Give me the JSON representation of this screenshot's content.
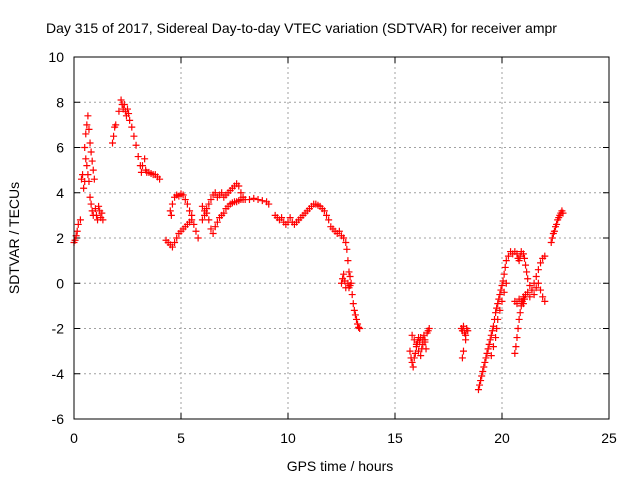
{
  "chart_data": {
    "type": "scatter",
    "title": "Day 315 of 2017, Sidereal Day-to-day VTEC variation (SDTVAR) for receiver ampr",
    "xlabel": "GPS time / hours",
    "ylabel": "SDTVAR / TECUs",
    "xlim": [
      0,
      25
    ],
    "ylim": [
      -6,
      10
    ],
    "xticks": [
      0,
      5,
      10,
      15,
      20,
      25
    ],
    "yticks": [
      -6,
      -4,
      -2,
      0,
      2,
      4,
      6,
      8,
      10
    ],
    "grid": true,
    "marker": "plus",
    "color": "#ff0000",
    "series": [
      {
        "name": "SDTVAR",
        "points": [
          [
            0.0,
            1.8
          ],
          [
            0.05,
            1.9
          ],
          [
            0.1,
            2.1
          ],
          [
            0.15,
            2.3
          ],
          [
            0.2,
            2.6
          ],
          [
            0.3,
            2.8
          ],
          [
            0.35,
            4.6
          ],
          [
            0.4,
            4.8
          ],
          [
            0.45,
            4.2
          ],
          [
            0.5,
            4.5
          ],
          [
            0.5,
            6.0
          ],
          [
            0.55,
            6.6
          ],
          [
            0.6,
            7.0
          ],
          [
            0.65,
            7.4
          ],
          [
            0.7,
            6.8
          ],
          [
            0.75,
            6.2
          ],
          [
            0.8,
            5.8
          ],
          [
            0.85,
            5.4
          ],
          [
            0.9,
            5.0
          ],
          [
            0.95,
            4.6
          ],
          [
            0.55,
            5.5
          ],
          [
            0.6,
            5.2
          ],
          [
            0.65,
            4.8
          ],
          [
            0.7,
            4.5
          ],
          [
            0.75,
            3.8
          ],
          [
            0.8,
            3.5
          ],
          [
            0.85,
            3.2
          ],
          [
            0.9,
            3.0
          ],
          [
            1.0,
            3.3
          ],
          [
            1.05,
            3.0
          ],
          [
            1.1,
            2.8
          ],
          [
            1.15,
            3.4
          ],
          [
            1.2,
            3.2
          ],
          [
            1.25,
            2.9
          ],
          [
            1.3,
            3.1
          ],
          [
            1.35,
            2.8
          ],
          [
            1.8,
            6.2
          ],
          [
            1.85,
            6.5
          ],
          [
            1.9,
            6.9
          ],
          [
            1.95,
            7.0
          ],
          [
            2.1,
            7.6
          ],
          [
            2.2,
            8.1
          ],
          [
            2.25,
            7.9
          ],
          [
            2.3,
            7.7
          ],
          [
            2.35,
            7.9
          ],
          [
            2.4,
            7.6
          ],
          [
            2.45,
            7.4
          ],
          [
            2.5,
            7.7
          ],
          [
            2.55,
            7.5
          ],
          [
            2.6,
            7.2
          ],
          [
            2.7,
            6.9
          ],
          [
            2.8,
            6.5
          ],
          [
            2.9,
            6.1
          ],
          [
            3.0,
            5.6
          ],
          [
            3.1,
            5.2
          ],
          [
            3.15,
            4.9
          ],
          [
            3.2,
            5.2
          ],
          [
            3.3,
            5.5
          ],
          [
            3.35,
            5.0
          ],
          [
            3.4,
            4.9
          ],
          [
            3.5,
            4.9
          ],
          [
            3.6,
            4.85
          ],
          [
            3.7,
            4.8
          ],
          [
            3.8,
            4.8
          ],
          [
            3.9,
            4.7
          ],
          [
            4.0,
            4.6
          ],
          [
            4.3,
            1.9
          ],
          [
            4.4,
            1.8
          ],
          [
            4.5,
            1.7
          ],
          [
            4.6,
            1.6
          ],
          [
            4.7,
            1.8
          ],
          [
            4.8,
            2.0
          ],
          [
            4.9,
            2.2
          ],
          [
            5.0,
            2.3
          ],
          [
            5.1,
            2.4
          ],
          [
            5.2,
            2.5
          ],
          [
            5.3,
            2.6
          ],
          [
            5.4,
            2.7
          ],
          [
            5.5,
            2.8
          ],
          [
            5.6,
            2.6
          ],
          [
            5.7,
            2.3
          ],
          [
            5.8,
            2.0
          ],
          [
            4.5,
            3.2
          ],
          [
            4.55,
            3.0
          ],
          [
            4.6,
            3.5
          ],
          [
            4.7,
            3.8
          ],
          [
            4.8,
            3.9
          ],
          [
            4.9,
            3.85
          ],
          [
            5.0,
            3.95
          ],
          [
            5.1,
            3.9
          ],
          [
            5.2,
            3.7
          ],
          [
            5.3,
            3.5
          ],
          [
            5.4,
            3.2
          ],
          [
            5.5,
            3.0
          ],
          [
            6.0,
            3.4
          ],
          [
            6.1,
            3.2
          ],
          [
            6.2,
            3.1
          ],
          [
            6.3,
            2.8
          ],
          [
            6.4,
            2.4
          ],
          [
            6.5,
            2.2
          ],
          [
            6.6,
            2.5
          ],
          [
            6.7,
            2.7
          ],
          [
            6.8,
            2.9
          ],
          [
            6.9,
            3.0
          ],
          [
            7.0,
            3.1
          ],
          [
            7.1,
            3.3
          ],
          [
            7.2,
            3.4
          ],
          [
            7.3,
            3.5
          ],
          [
            7.4,
            3.55
          ],
          [
            7.5,
            3.6
          ],
          [
            7.6,
            3.6
          ],
          [
            7.7,
            3.65
          ],
          [
            7.8,
            3.7
          ],
          [
            7.9,
            3.7
          ],
          [
            8.0,
            3.7
          ],
          [
            8.2,
            3.7
          ],
          [
            8.4,
            3.75
          ],
          [
            8.6,
            3.7
          ],
          [
            8.8,
            3.65
          ],
          [
            9.0,
            3.6
          ],
          [
            9.1,
            3.5
          ],
          [
            6.0,
            2.8
          ],
          [
            6.1,
            3.0
          ],
          [
            6.2,
            3.3
          ],
          [
            6.3,
            3.5
          ],
          [
            6.4,
            3.7
          ],
          [
            6.5,
            3.9
          ],
          [
            6.6,
            4.0
          ],
          [
            6.7,
            3.8
          ],
          [
            6.8,
            3.9
          ],
          [
            6.9,
            4.0
          ],
          [
            7.0,
            3.8
          ],
          [
            7.1,
            3.9
          ],
          [
            7.2,
            4.0
          ],
          [
            7.3,
            4.1
          ],
          [
            7.4,
            4.2
          ],
          [
            7.5,
            4.3
          ],
          [
            7.6,
            4.4
          ],
          [
            7.7,
            4.3
          ],
          [
            7.8,
            4.0
          ],
          [
            7.9,
            3.8
          ],
          [
            9.4,
            3.0
          ],
          [
            9.5,
            2.9
          ],
          [
            9.6,
            2.8
          ],
          [
            9.7,
            2.9
          ],
          [
            9.8,
            2.7
          ],
          [
            9.9,
            2.6
          ],
          [
            10.0,
            2.7
          ],
          [
            10.1,
            2.9
          ],
          [
            10.2,
            2.7
          ],
          [
            10.3,
            2.6
          ],
          [
            10.4,
            2.7
          ],
          [
            10.5,
            2.8
          ],
          [
            10.6,
            2.9
          ],
          [
            10.7,
            3.0
          ],
          [
            10.8,
            3.1
          ],
          [
            10.9,
            3.2
          ],
          [
            11.0,
            3.3
          ],
          [
            11.1,
            3.4
          ],
          [
            11.2,
            3.5
          ],
          [
            11.3,
            3.5
          ],
          [
            11.4,
            3.45
          ],
          [
            11.5,
            3.4
          ],
          [
            11.6,
            3.3
          ],
          [
            11.7,
            3.2
          ],
          [
            11.8,
            3.0
          ],
          [
            11.9,
            2.8
          ],
          [
            12.0,
            2.5
          ],
          [
            12.1,
            2.4
          ],
          [
            12.2,
            2.3
          ],
          [
            12.3,
            2.2
          ],
          [
            12.4,
            2.3
          ],
          [
            12.5,
            2.1
          ],
          [
            12.6,
            2.0
          ],
          [
            12.7,
            1.8
          ],
          [
            12.75,
            1.5
          ],
          [
            12.8,
            1.0
          ],
          [
            12.85,
            0.5
          ],
          [
            12.5,
            0.0
          ],
          [
            12.55,
            0.2
          ],
          [
            12.6,
            0.4
          ],
          [
            12.65,
            0.1
          ],
          [
            12.7,
            -0.2
          ],
          [
            12.8,
            0.0
          ],
          [
            12.85,
            -0.2
          ],
          [
            12.9,
            -0.1
          ],
          [
            12.9,
            0.3
          ],
          [
            12.95,
            0.0
          ],
          [
            13.0,
            -0.5
          ],
          [
            13.05,
            -0.9
          ],
          [
            13.1,
            -1.2
          ],
          [
            13.15,
            -1.4
          ],
          [
            13.2,
            -1.6
          ],
          [
            13.25,
            -1.8
          ],
          [
            13.3,
            -1.95
          ],
          [
            13.35,
            -2.0
          ],
          [
            15.7,
            -3.0
          ],
          [
            15.75,
            -3.3
          ],
          [
            15.8,
            -3.5
          ],
          [
            15.85,
            -3.7
          ],
          [
            15.9,
            -3.3
          ],
          [
            15.95,
            -3.1
          ],
          [
            16.0,
            -2.8
          ],
          [
            16.05,
            -2.6
          ],
          [
            16.1,
            -2.4
          ],
          [
            16.15,
            -2.6
          ],
          [
            15.8,
            -2.3
          ],
          [
            15.9,
            -2.5
          ],
          [
            16.0,
            -2.7
          ],
          [
            16.1,
            -3.0
          ],
          [
            16.2,
            -3.2
          ],
          [
            16.25,
            -2.9
          ],
          [
            16.3,
            -2.5
          ],
          [
            16.35,
            -2.3
          ],
          [
            16.4,
            -2.6
          ],
          [
            16.45,
            -2.9
          ],
          [
            16.2,
            -2.4
          ],
          [
            16.3,
            -2.7
          ],
          [
            16.4,
            -2.5
          ],
          [
            16.5,
            -2.2
          ],
          [
            16.55,
            -2.1
          ],
          [
            16.6,
            -2.0
          ],
          [
            18.1,
            -2.0
          ],
          [
            18.15,
            -2.1
          ],
          [
            18.2,
            -1.9
          ],
          [
            18.25,
            -2.2
          ],
          [
            18.3,
            -2.3
          ],
          [
            18.35,
            -2.0
          ],
          [
            18.4,
            -2.1
          ],
          [
            18.3,
            -2.5
          ],
          [
            18.2,
            -3.0
          ],
          [
            18.15,
            -3.3
          ],
          [
            18.9,
            -4.7
          ],
          [
            18.95,
            -4.5
          ],
          [
            19.0,
            -4.3
          ],
          [
            19.05,
            -4.1
          ],
          [
            19.1,
            -3.9
          ],
          [
            19.15,
            -3.7
          ],
          [
            19.2,
            -3.5
          ],
          [
            19.25,
            -3.3
          ],
          [
            19.3,
            -3.1
          ],
          [
            19.35,
            -2.9
          ],
          [
            19.4,
            -2.7
          ],
          [
            19.45,
            -2.5
          ],
          [
            19.5,
            -2.3
          ],
          [
            19.55,
            -2.1
          ],
          [
            19.6,
            -1.9
          ],
          [
            19.65,
            -1.6
          ],
          [
            19.7,
            -1.3
          ],
          [
            19.75,
            -1.1
          ],
          [
            19.8,
            -0.9
          ],
          [
            19.85,
            -0.7
          ],
          [
            19.9,
            -0.5
          ],
          [
            19.95,
            -0.3
          ],
          [
            20.0,
            -0.1
          ],
          [
            20.05,
            0.1
          ],
          [
            20.1,
            0.4
          ],
          [
            20.15,
            0.7
          ],
          [
            20.2,
            1.0
          ],
          [
            20.3,
            1.2
          ],
          [
            20.4,
            1.4
          ],
          [
            20.5,
            1.3
          ],
          [
            19.5,
            -3.2
          ],
          [
            19.6,
            -2.8
          ],
          [
            19.7,
            -2.4
          ],
          [
            19.75,
            -2.0
          ],
          [
            19.8,
            -1.6
          ],
          [
            19.9,
            -1.2
          ],
          [
            20.0,
            -0.8
          ],
          [
            20.1,
            -0.4
          ],
          [
            20.2,
            0.0
          ],
          [
            20.6,
            1.4
          ],
          [
            20.7,
            1.3
          ],
          [
            20.75,
            1.1
          ],
          [
            20.8,
            1.0
          ],
          [
            20.85,
            1.2
          ],
          [
            20.9,
            1.4
          ],
          [
            21.0,
            1.3
          ],
          [
            21.05,
            1.1
          ],
          [
            21.1,
            0.8
          ],
          [
            21.15,
            0.5
          ],
          [
            21.2,
            0.2
          ],
          [
            21.3,
            -0.1
          ],
          [
            21.4,
            -0.3
          ],
          [
            21.5,
            -0.5
          ],
          [
            21.6,
            -0.2
          ],
          [
            21.7,
            0.0
          ],
          [
            21.8,
            -0.3
          ],
          [
            21.9,
            -0.6
          ],
          [
            22.0,
            -0.8
          ],
          [
            20.6,
            -3.1
          ],
          [
            20.65,
            -2.8
          ],
          [
            20.7,
            -2.4
          ],
          [
            20.75,
            -2.0
          ],
          [
            20.8,
            -1.6
          ],
          [
            20.85,
            -1.3
          ],
          [
            20.9,
            -1.0
          ],
          [
            20.95,
            -0.8
          ],
          [
            21.0,
            -0.9
          ],
          [
            21.05,
            -0.7
          ],
          [
            21.1,
            -0.5
          ],
          [
            21.2,
            -0.4
          ],
          [
            21.3,
            -0.6
          ],
          [
            21.4,
            -0.3
          ],
          [
            21.5,
            0.0
          ],
          [
            21.6,
            0.3
          ],
          [
            21.7,
            0.6
          ],
          [
            21.8,
            0.9
          ],
          [
            21.9,
            1.1
          ],
          [
            22.0,
            1.2
          ],
          [
            20.6,
            -0.8
          ],
          [
            20.7,
            -0.9
          ],
          [
            20.8,
            -0.7
          ],
          [
            20.9,
            -0.8
          ],
          [
            21.0,
            -0.6
          ],
          [
            22.3,
            1.8
          ],
          [
            22.35,
            2.0
          ],
          [
            22.4,
            2.2
          ],
          [
            22.45,
            2.3
          ],
          [
            22.5,
            2.5
          ],
          [
            22.55,
            2.6
          ],
          [
            22.6,
            2.8
          ],
          [
            22.65,
            2.9
          ],
          [
            22.7,
            3.0
          ],
          [
            22.75,
            3.1
          ],
          [
            22.8,
            3.2
          ],
          [
            22.85,
            3.1
          ]
        ]
      }
    ]
  }
}
